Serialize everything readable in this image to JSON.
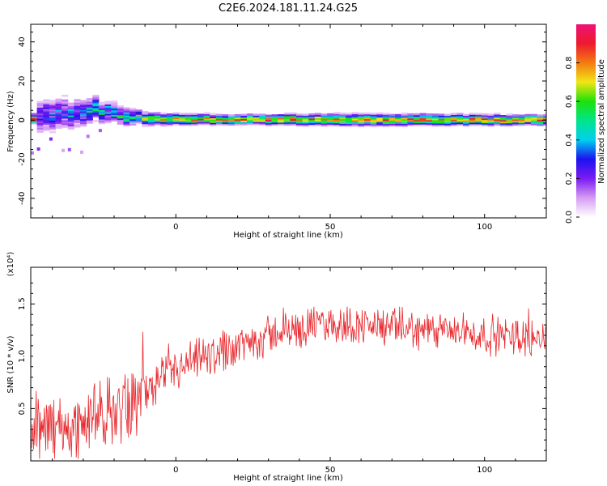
{
  "title": "C2E6.2024.181.11.24.G25",
  "chart_data": [
    {
      "type": "heatmap",
      "xlabel": "Height of straight line (km)",
      "ylabel": "Frequency (Hz)",
      "xlim": [
        -47,
        120
      ],
      "ylim": [
        -50,
        49
      ],
      "xticks": [
        0,
        50,
        100
      ],
      "yticks": [
        -40,
        -20,
        0,
        20,
        40
      ],
      "colorbar": {
        "label": "Normalized spectral amplitude",
        "range": [
          0,
          1
        ],
        "ticks": [
          0.0,
          0.2,
          0.4,
          0.6,
          0.8
        ],
        "colors": [
          "#ffffff",
          "#d69cf2",
          "#7b1bf2",
          "#1c12f0",
          "#00cfef",
          "#00e58a",
          "#1de10a",
          "#f0e614",
          "#f47a12",
          "#ee1a2e",
          "#ee1276"
        ]
      },
      "ridge": [
        {
          "x": -45,
          "f": 3,
          "halfwidth": 6.5,
          "amp": 0.3
        },
        {
          "x": -38,
          "f": 2,
          "halfwidth": 6.5,
          "amp": 0.3
        },
        {
          "x": -32,
          "f": 3,
          "halfwidth": 5.5,
          "amp": 0.35
        },
        {
          "x": -27,
          "f": 5,
          "halfwidth": 4.5,
          "amp": 0.45
        },
        {
          "x": -20,
          "f": 4,
          "halfwidth": 3.5,
          "amp": 0.5
        },
        {
          "x": -12,
          "f": 1,
          "halfwidth": 2.5,
          "amp": 0.6
        },
        {
          "x": 0,
          "f": 0.5,
          "halfwidth": 2.0,
          "amp": 0.7
        },
        {
          "x": 20,
          "f": 0.4,
          "halfwidth": 1.8,
          "amp": 0.8
        },
        {
          "x": 60,
          "f": 0.3,
          "halfwidth": 2.2,
          "amp": 0.75
        },
        {
          "x": 120,
          "f": 0.2,
          "halfwidth": 1.8,
          "amp": 0.85
        }
      ]
    },
    {
      "type": "line",
      "xlabel": "Height of straight line (km)",
      "ylabel": "SNR (10 * v/v)",
      "unit_label": "(x10⁴)",
      "xlim": [
        -47,
        120
      ],
      "ylim": [
        0,
        1.85
      ],
      "xticks": [
        0,
        50,
        100
      ],
      "yticks": [
        0.5,
        1.0,
        1.5
      ],
      "ytick_labels": [
        "0.5",
        "1.0",
        "1.5"
      ],
      "color": "#e8262b",
      "trend": [
        {
          "x": -47,
          "y": 0.25
        },
        {
          "x": -30,
          "y": 0.35
        },
        {
          "x": -15,
          "y": 0.55
        },
        {
          "x": 0,
          "y": 0.85
        },
        {
          "x": 15,
          "y": 1.05
        },
        {
          "x": 30,
          "y": 1.2
        },
        {
          "x": 45,
          "y": 1.3
        },
        {
          "x": 60,
          "y": 1.3
        },
        {
          "x": 80,
          "y": 1.25
        },
        {
          "x": 100,
          "y": 1.2
        },
        {
          "x": 120,
          "y": 1.18
        }
      ]
    }
  ]
}
